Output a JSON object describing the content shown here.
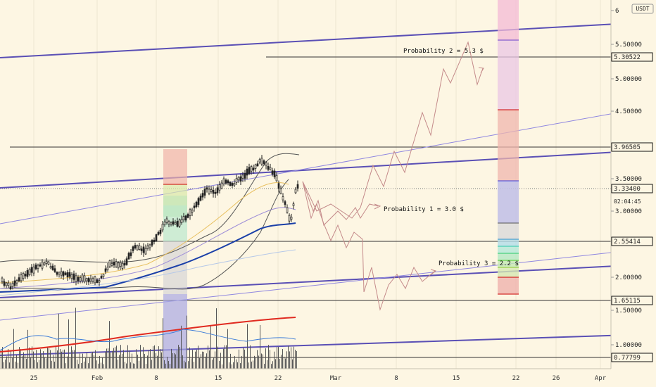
{
  "currency": "USDT",
  "countdown": "02:04:45",
  "chart_data": {
    "type": "candlestick",
    "y_axis": {
      "ticks": [
        {
          "value": 6.0,
          "label": "6"
        },
        {
          "value": 5.5,
          "label": "5.50000"
        },
        {
          "value": 5.0,
          "label": "5.00000"
        },
        {
          "value": 4.5,
          "label": "4.50000"
        },
        {
          "value": 3.5,
          "label": "3.50000"
        },
        {
          "value": 3.0,
          "label": "3.00000"
        },
        {
          "value": 2.0,
          "label": "2.00000"
        },
        {
          "value": 1.5,
          "label": "1.50000"
        },
        {
          "value": 1.0,
          "label": "1.00000"
        }
      ],
      "highlighted": [
        {
          "value": 5.30522,
          "label": "5.30522"
        },
        {
          "value": 3.96505,
          "label": "3.96505"
        },
        {
          "value": 3.334,
          "label": "3.33400"
        },
        {
          "value": 2.55414,
          "label": "2.55414"
        },
        {
          "value": 1.65115,
          "label": "1.65115"
        },
        {
          "value": 0.77799,
          "label": "0.77799"
        }
      ]
    },
    "x_axis": {
      "ticks": [
        "25",
        "Feb",
        "8",
        "15",
        "22",
        "Mar",
        "8",
        "15",
        "22",
        "26",
        "Apr"
      ]
    },
    "annotations": [
      {
        "text": "Probability 2 = 5.3 $",
        "price": 5.3
      },
      {
        "text": "Probability 1 = 3.0 $",
        "price": 3.0
      },
      {
        "text": "Probability 3 = 2.2 $",
        "price": 2.2
      }
    ]
  }
}
